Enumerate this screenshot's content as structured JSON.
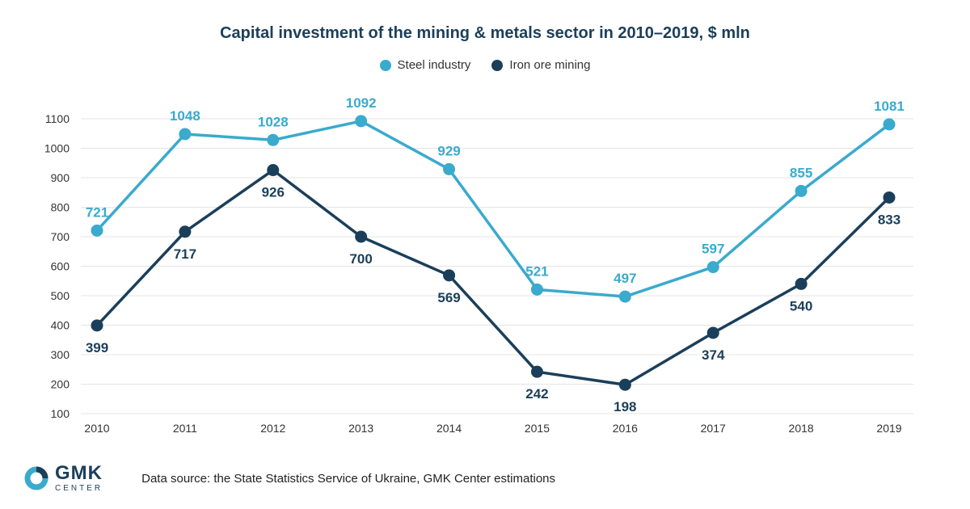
{
  "title": "Capital investment of the mining & metals sector in 2010–2019, $ mln",
  "colors": {
    "steel": "#3aaacd",
    "iron": "#1b3f5a",
    "grid": "#e4e4e4"
  },
  "footer": {
    "logo_name": "GMK",
    "logo_sub": "CENTER",
    "source": "Data source: the State Statistics Service of Ukraine, GMK Center estimations"
  },
  "chart_data": {
    "type": "line",
    "title": "Capital investment of the mining & metals sector in 2010–2019, $ mln",
    "xlabel": "",
    "ylabel": "",
    "x": [
      "2010",
      "2011",
      "2012",
      "2013",
      "2014",
      "2015",
      "2016",
      "2017",
      "2018",
      "2019"
    ],
    "yticks": [
      "100",
      "200",
      "300",
      "400",
      "500",
      "600",
      "700",
      "800",
      "900",
      "1000",
      "1100"
    ],
    "ylim": [
      100,
      1100
    ],
    "grid": true,
    "legend": "top-center",
    "series": [
      {
        "name": "Steel industry",
        "values": [
          721,
          1048,
          1028,
          1092,
          929,
          521,
          497,
          597,
          855,
          1081
        ],
        "labels": [
          "721",
          "1048",
          "1028",
          "1092",
          "929",
          "521",
          "497",
          "597",
          "855",
          "1081"
        ]
      },
      {
        "name": "Iron ore mining",
        "values": [
          399,
          717,
          926,
          700,
          569,
          242,
          198,
          374,
          540,
          833
        ],
        "labels": [
          "399",
          "717",
          "926",
          "700",
          "569",
          "242",
          "198",
          "374",
          "540",
          "833"
        ]
      }
    ]
  }
}
